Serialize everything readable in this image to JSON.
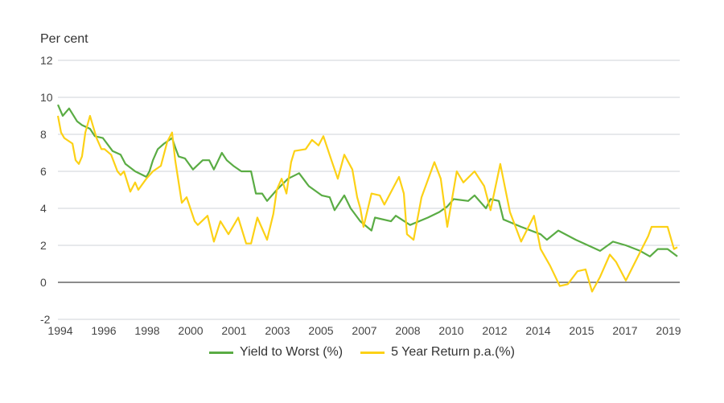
{
  "chart_data": {
    "type": "line",
    "title": "",
    "ylabel": "Per cent",
    "xlabel": "",
    "ylim": [
      -2,
      12
    ],
    "yticks": [
      -2,
      0,
      2,
      4,
      6,
      8,
      10,
      12
    ],
    "xlim": [
      1994,
      2019.5
    ],
    "xtick_labels": [
      "1994",
      "1996",
      "1998",
      "2000",
      "2001",
      "2003",
      "2005",
      "2007",
      "2008",
      "2010",
      "2012",
      "2014",
      "2015",
      "2017",
      "2019"
    ],
    "grid": true,
    "legend": "bottom",
    "series": [
      {
        "name": "Yield to Worst (%)",
        "color": "#5aac44",
        "points": [
          [
            1994.0,
            9.6
          ],
          [
            1994.2,
            9.0
          ],
          [
            1994.46,
            9.4
          ],
          [
            1994.79,
            8.7
          ],
          [
            1994.99,
            8.5
          ],
          [
            1995.32,
            8.3
          ],
          [
            1995.52,
            7.9
          ],
          [
            1995.85,
            7.8
          ],
          [
            1996.25,
            7.1
          ],
          [
            1996.58,
            6.9
          ],
          [
            1996.78,
            6.4
          ],
          [
            1997.18,
            6.0
          ],
          [
            1997.64,
            5.7
          ],
          [
            1997.77,
            6.0
          ],
          [
            1997.91,
            6.6
          ],
          [
            1998.11,
            7.2
          ],
          [
            1998.37,
            7.5
          ],
          [
            1998.7,
            7.8
          ],
          [
            1998.83,
            7.3
          ],
          [
            1998.97,
            6.8
          ],
          [
            1999.23,
            6.7
          ],
          [
            1999.56,
            6.1
          ],
          [
            1999.96,
            6.6
          ],
          [
            2000.23,
            6.6
          ],
          [
            2000.42,
            6.1
          ],
          [
            2000.75,
            7.0
          ],
          [
            2000.95,
            6.6
          ],
          [
            2001.22,
            6.3
          ],
          [
            2001.55,
            6.0
          ],
          [
            2001.95,
            6.0
          ],
          [
            2002.15,
            4.8
          ],
          [
            2002.41,
            4.8
          ],
          [
            2002.61,
            4.4
          ],
          [
            2003.01,
            5.0
          ],
          [
            2003.47,
            5.6
          ],
          [
            2003.93,
            5.9
          ],
          [
            2004.33,
            5.2
          ],
          [
            2004.86,
            4.7
          ],
          [
            2005.19,
            4.6
          ],
          [
            2005.39,
            3.9
          ],
          [
            2005.79,
            4.7
          ],
          [
            2006.05,
            4.0
          ],
          [
            2006.45,
            3.3
          ],
          [
            2006.91,
            2.8
          ],
          [
            2007.05,
            3.5
          ],
          [
            2007.71,
            3.3
          ],
          [
            2007.91,
            3.6
          ],
          [
            2008.5,
            3.1
          ],
          [
            2009.23,
            3.5
          ],
          [
            2009.7,
            3.8
          ],
          [
            2010.03,
            4.1
          ],
          [
            2010.29,
            4.5
          ],
          [
            2010.89,
            4.4
          ],
          [
            2011.15,
            4.7
          ],
          [
            2011.62,
            4.0
          ],
          [
            2011.81,
            4.5
          ],
          [
            2012.15,
            4.4
          ],
          [
            2012.34,
            3.4
          ],
          [
            2013.07,
            3.0
          ],
          [
            2013.87,
            2.6
          ],
          [
            2014.13,
            2.3
          ],
          [
            2014.6,
            2.8
          ],
          [
            2015.32,
            2.3
          ],
          [
            2015.66,
            2.1
          ],
          [
            2016.32,
            1.7
          ],
          [
            2016.85,
            2.2
          ],
          [
            2017.38,
            2.0
          ],
          [
            2017.97,
            1.7
          ],
          [
            2018.37,
            1.4
          ],
          [
            2018.7,
            1.8
          ],
          [
            2019.1,
            1.8
          ],
          [
            2019.5,
            1.4
          ]
        ]
      },
      {
        "name": "5 Year Return p.a.(%)",
        "color": "#fcd116",
        "points": [
          [
            1994.0,
            9.0
          ],
          [
            1994.13,
            8.1
          ],
          [
            1994.26,
            7.8
          ],
          [
            1994.6,
            7.5
          ],
          [
            1994.73,
            6.6
          ],
          [
            1994.86,
            6.4
          ],
          [
            1994.99,
            6.8
          ],
          [
            1995.13,
            8.1
          ],
          [
            1995.32,
            9.0
          ],
          [
            1995.59,
            7.8
          ],
          [
            1995.79,
            7.2
          ],
          [
            1995.92,
            7.2
          ],
          [
            1996.19,
            6.9
          ],
          [
            1996.45,
            6.0
          ],
          [
            1996.58,
            5.8
          ],
          [
            1996.72,
            6.0
          ],
          [
            1996.98,
            4.9
          ],
          [
            1997.18,
            5.4
          ],
          [
            1997.31,
            5.0
          ],
          [
            1997.64,
            5.6
          ],
          [
            1997.91,
            6.0
          ],
          [
            1998.24,
            6.3
          ],
          [
            1998.5,
            7.6
          ],
          [
            1998.7,
            8.1
          ],
          [
            1998.83,
            6.6
          ],
          [
            1999.1,
            4.3
          ],
          [
            1999.3,
            4.6
          ],
          [
            1999.63,
            3.3
          ],
          [
            1999.76,
            3.1
          ],
          [
            2000.16,
            3.6
          ],
          [
            2000.42,
            2.2
          ],
          [
            2000.69,
            3.3
          ],
          [
            2001.02,
            2.6
          ],
          [
            2001.42,
            3.5
          ],
          [
            2001.75,
            2.1
          ],
          [
            2001.95,
            2.1
          ],
          [
            2002.21,
            3.5
          ],
          [
            2002.61,
            2.3
          ],
          [
            2002.87,
            3.7
          ],
          [
            2003.01,
            5.0
          ],
          [
            2003.21,
            5.6
          ],
          [
            2003.41,
            4.8
          ],
          [
            2003.6,
            6.5
          ],
          [
            2003.74,
            7.1
          ],
          [
            2004.2,
            7.2
          ],
          [
            2004.46,
            7.7
          ],
          [
            2004.73,
            7.4
          ],
          [
            2004.93,
            7.9
          ],
          [
            2005.26,
            6.6
          ],
          [
            2005.52,
            5.6
          ],
          [
            2005.79,
            6.9
          ],
          [
            2006.12,
            6.1
          ],
          [
            2006.32,
            4.6
          ],
          [
            2006.45,
            4.0
          ],
          [
            2006.58,
            3.0
          ],
          [
            2006.91,
            4.8
          ],
          [
            2007.25,
            4.7
          ],
          [
            2007.44,
            4.2
          ],
          [
            2007.84,
            5.2
          ],
          [
            2008.04,
            5.7
          ],
          [
            2008.24,
            4.8
          ],
          [
            2008.37,
            2.6
          ],
          [
            2008.64,
            2.3
          ],
          [
            2008.97,
            4.6
          ],
          [
            2009.5,
            6.5
          ],
          [
            2009.76,
            5.6
          ],
          [
            2010.03,
            3.0
          ],
          [
            2010.42,
            6.0
          ],
          [
            2010.69,
            5.4
          ],
          [
            2011.15,
            6.0
          ],
          [
            2011.55,
            5.2
          ],
          [
            2011.81,
            3.9
          ],
          [
            2012.21,
            6.4
          ],
          [
            2012.61,
            3.8
          ],
          [
            2013.07,
            2.2
          ],
          [
            2013.6,
            3.6
          ],
          [
            2013.87,
            1.8
          ],
          [
            2014.26,
            0.9
          ],
          [
            2014.66,
            -0.2
          ],
          [
            2014.99,
            -0.1
          ],
          [
            2015.39,
            0.6
          ],
          [
            2015.72,
            0.7
          ],
          [
            2015.99,
            -0.5
          ],
          [
            2016.32,
            0.3
          ],
          [
            2016.72,
            1.5
          ],
          [
            2016.98,
            1.1
          ],
          [
            2017.38,
            0.1
          ],
          [
            2017.84,
            1.3
          ],
          [
            2018.3,
            2.5
          ],
          [
            2018.44,
            3.0
          ],
          [
            2019.1,
            3.0
          ],
          [
            2019.36,
            1.8
          ],
          [
            2019.5,
            1.9
          ]
        ]
      }
    ]
  }
}
